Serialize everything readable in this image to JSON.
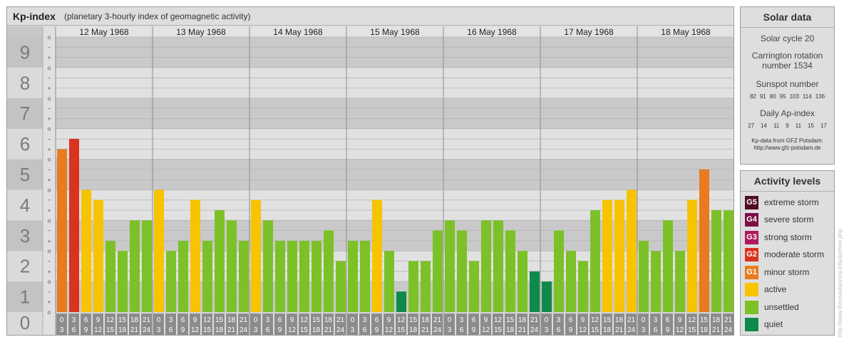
{
  "header": {
    "title": "Kp-index",
    "subtitle": "(planetary 3-hourly index of geomagnetic activity)"
  },
  "chart_data": {
    "type": "bar",
    "ylim": [
      0,
      9
    ],
    "y_ticks": [
      "0",
      "1",
      "2",
      "3",
      "4",
      "5",
      "6",
      "7",
      "8",
      "9"
    ],
    "sub_ticks": [
      "o",
      "+",
      "−"
    ],
    "days": [
      "12 May 1968",
      "13 May 1968",
      "14 May 1968",
      "15 May 1968",
      "16 May 1968",
      "17 May 1968",
      "18 May 1968"
    ],
    "hour_labels": [
      [
        "0",
        "3"
      ],
      [
        "3",
        "6"
      ],
      [
        "6",
        "9"
      ],
      [
        "9",
        "12"
      ],
      [
        "12",
        "15"
      ],
      [
        "15",
        "18"
      ],
      [
        "18",
        "21"
      ],
      [
        "21",
        "24"
      ]
    ],
    "values": [
      [
        5.33,
        5.67,
        4.0,
        3.67,
        2.33,
        2.0,
        3.0,
        3.0
      ],
      [
        4.0,
        2.0,
        2.33,
        3.67,
        2.33,
        3.33,
        3.0,
        2.33
      ],
      [
        3.67,
        3.0,
        2.33,
        2.33,
        2.33,
        2.33,
        2.67,
        1.67
      ],
      [
        2.33,
        2.33,
        3.67,
        2.0,
        0.67,
        1.67,
        1.67,
        2.67
      ],
      [
        3.0,
        2.67,
        1.67,
        3.0,
        3.0,
        2.67,
        2.0,
        1.33
      ],
      [
        1.0,
        2.67,
        2.0,
        1.67,
        3.33,
        3.67,
        3.67,
        4.0
      ],
      [
        2.33,
        2.0,
        3.0,
        2.0,
        3.67,
        4.67,
        3.33,
        3.33
      ]
    ],
    "level_colors": {
      "quiet": "#0e8a4a",
      "unsettled": "#7cc127",
      "active": "#f8c300",
      "minor": "#e77b1e",
      "moderate": "#d93320",
      "strong": "#b0195e",
      "severe": "#7b1046",
      "extreme": "#4e0d24"
    },
    "band_colors": [
      "#c9c9c9",
      "#e1e1e1"
    ],
    "axis_color": "#8d8d8d",
    "label_bg": "#8c8c8c"
  },
  "solar": {
    "header": "Solar data",
    "cycle": "Solar cycle 20",
    "carrington_1": "Carrington rotation",
    "carrington_2": "number 1534",
    "sunspot_label": "Sunspot number",
    "sunspot_values": [
      "82",
      "91",
      "80",
      "95",
      "103",
      "114",
      "136"
    ],
    "ap_label": "Daily Ap-index",
    "ap_values": [
      "27",
      "14",
      "11",
      "9",
      "11",
      "15",
      "17"
    ],
    "source_1": "Kp-data from GFZ Potsdam:",
    "source_2": "http://www.gfz-potsdam.de"
  },
  "levels": {
    "header": "Activity levels",
    "items": [
      {
        "badge": "G5",
        "label": "extreme storm",
        "color": "#4e0d24"
      },
      {
        "badge": "G4",
        "label": "severe storm",
        "color": "#7b1046"
      },
      {
        "badge": "G3",
        "label": "strong storm",
        "color": "#b0195e"
      },
      {
        "badge": "G2",
        "label": "moderate storm",
        "color": "#d93320"
      },
      {
        "badge": "G1",
        "label": "minor storm",
        "color": "#e77b1e"
      },
      {
        "badge": "",
        "label": "active",
        "color": "#f8c300"
      },
      {
        "badge": "",
        "label": "unsettled",
        "color": "#7cc127"
      },
      {
        "badge": "",
        "label": "quiet",
        "color": "#0e8a4a"
      }
    ]
  },
  "credit": "http://www.theusaofaurora.info/archive.php"
}
